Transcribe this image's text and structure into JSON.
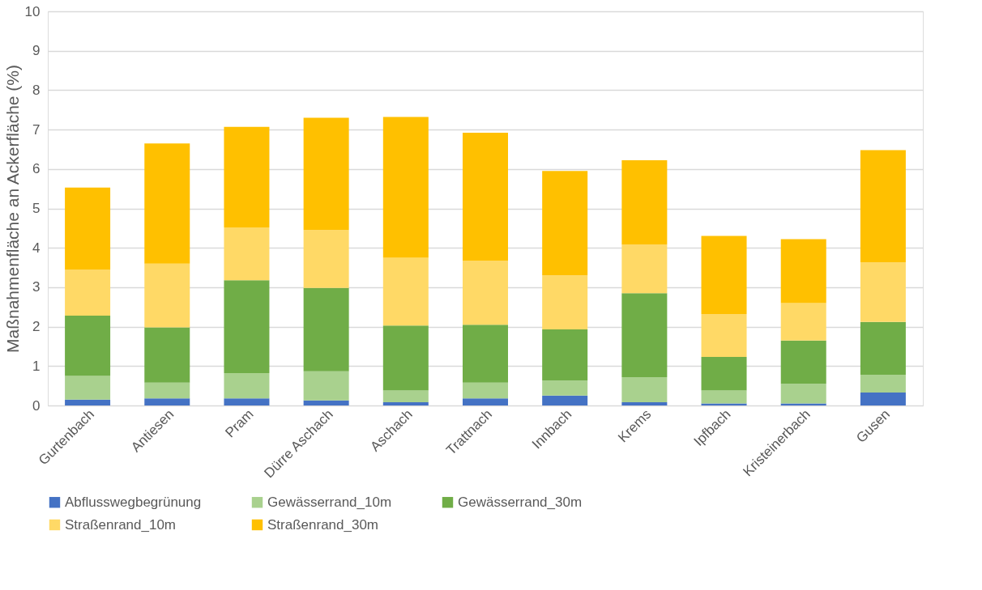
{
  "chart_data": {
    "type": "bar",
    "stacked": true,
    "ylabel": "Maßnahmenfläche an Ackerfläche (%)",
    "categories": [
      "Gurtenbach",
      "Antiesen",
      "Pram",
      "Dürre Aschach",
      "Aschach",
      "Trattnach",
      "Innbach",
      "Krems",
      "Ipfbach",
      "Kristeinerbach",
      "Gusen"
    ],
    "series": [
      {
        "name": "Abflusswegbegrünung",
        "color": "#4472c4",
        "values": [
          0.15,
          0.18,
          0.18,
          0.13,
          0.08,
          0.18,
          0.25,
          0.08,
          0.05,
          0.05,
          0.33
        ]
      },
      {
        "name": "Gewässerrand_10m",
        "color": "#a9d18e",
        "values": [
          0.6,
          0.4,
          0.64,
          0.74,
          0.3,
          0.4,
          0.38,
          0.64,
          0.33,
          0.5,
          0.45
        ]
      },
      {
        "name": "Gewässerrand_30m",
        "color": "#70ad47",
        "values": [
          1.53,
          1.4,
          2.36,
          2.11,
          1.65,
          1.47,
          1.3,
          2.13,
          0.85,
          1.1,
          1.34
        ]
      },
      {
        "name": "Straßenrand_10m",
        "color": "#ffd966",
        "values": [
          1.17,
          1.62,
          1.34,
          1.47,
          1.72,
          1.62,
          1.37,
          1.23,
          1.09,
          0.95,
          1.51
        ]
      },
      {
        "name": "Straßenrand_30m",
        "color": "#ffc000",
        "values": [
          2.08,
          3.05,
          2.55,
          2.85,
          3.57,
          3.25,
          2.65,
          2.14,
          1.98,
          1.62,
          2.85
        ]
      }
    ],
    "ylim": [
      0,
      10
    ],
    "yticks": [
      0,
      1,
      2,
      3,
      4,
      5,
      6,
      7,
      8,
      9,
      10
    ],
    "grid": "y",
    "legend": "bottom"
  }
}
